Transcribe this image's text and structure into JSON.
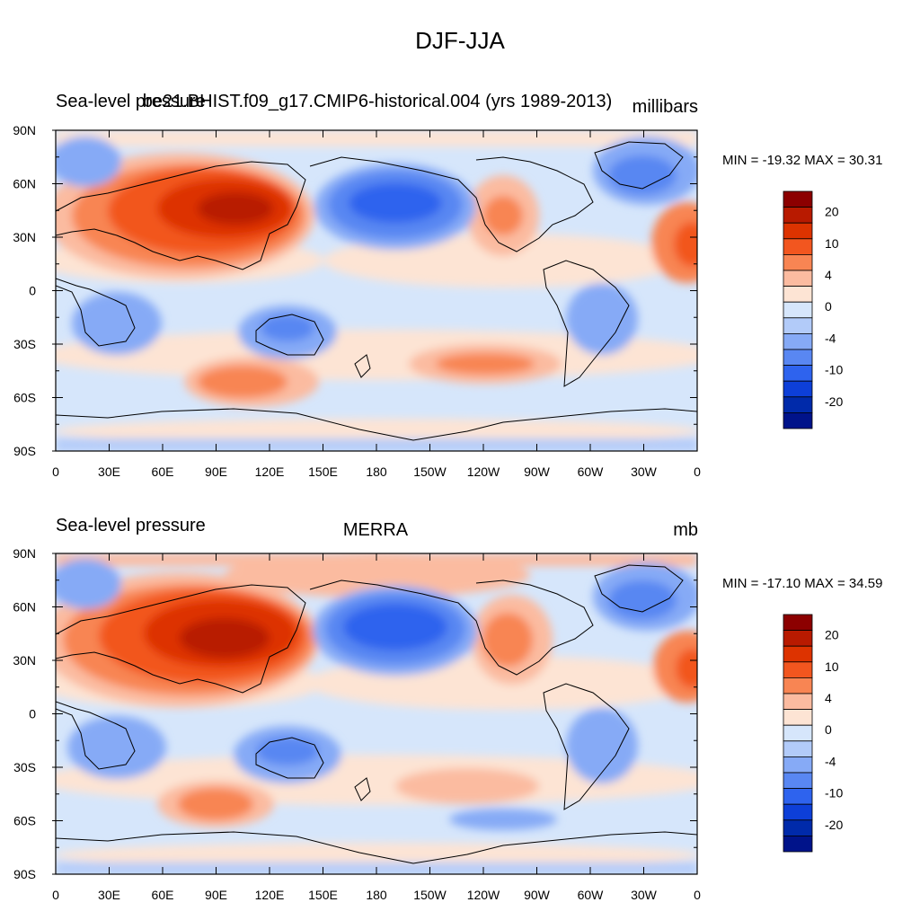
{
  "figure_title": "DJF-JJA",
  "panels": [
    {
      "left_title": "Sea-level pressure",
      "center_title": "be21.BHIST.f09_g17.CMIP6-historical.004 (yrs 1989-2013)",
      "units": "millibars",
      "min_max": "MIN = -19.32 MAX =  30.31"
    },
    {
      "left_title": "Sea-level pressure",
      "center_title": "MERRA",
      "units": "mb",
      "min_max": "MIN = -17.10 MAX =  34.59"
    }
  ],
  "lat_ticks": [
    "90N",
    "60N",
    "30N",
    "0",
    "30S",
    "60S",
    "90S"
  ],
  "lon_ticks": [
    "0",
    "30E",
    "60E",
    "90E",
    "120E",
    "150E",
    "180",
    "150W",
    "120W",
    "90W",
    "60W",
    "30W",
    "0"
  ],
  "colorbar": {
    "labels": [
      "20",
      "10",
      "4",
      "0",
      "-4",
      "-10",
      "-20"
    ],
    "colors": [
      "#8c0000",
      "#b81a00",
      "#dd3300",
      "#f2561f",
      "#f88553",
      "#fbbba0",
      "#fde4d4",
      "#d6e6fb",
      "#b2cbf9",
      "#86aaf6",
      "#5987f2",
      "#2e63ee",
      "#0d3fd8",
      "#002aaa",
      "#00138a"
    ]
  },
  "chart_data": {
    "type": "heatmap",
    "title": "DJF-JJA",
    "variable": "Sea-level pressure",
    "x_range": [
      "0",
      "0"
    ],
    "y_range": [
      "90S",
      "90N"
    ],
    "contour_levels": [
      -20,
      -10,
      -4,
      0,
      4,
      10,
      20
    ],
    "panels": [
      {
        "name": "be21.BHIST.f09_g17.CMIP6-historical.004 (yrs 1989-2013)",
        "units": "millibars",
        "min": -19.32,
        "max": 30.31
      },
      {
        "name": "MERRA",
        "units": "mb",
        "min": -17.1,
        "max": 34.59
      }
    ]
  }
}
